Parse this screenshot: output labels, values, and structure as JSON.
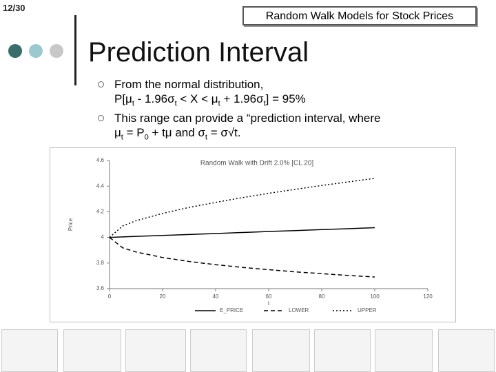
{
  "page_number": "12/30",
  "header": {
    "title": "Random Walk Models for Stock Prices"
  },
  "title": "Prediction Interval",
  "bullets": [
    {
      "runs": [
        "From the normal distribution,",
        "P[μ",
        "t",
        " - 1.96σ",
        "t",
        " < X < μ",
        "t",
        " + 1.96σ",
        "t",
        "] = 95%"
      ]
    },
    {
      "runs": [
        "This range can provide a “prediction interval, where",
        "μ",
        "t",
        " = P",
        "0",
        " + tμ and σ",
        "t",
        " = σ√t."
      ]
    }
  ],
  "chart_data": {
    "type": "line",
    "title": "Random Walk with Drift 2.0% [CL 20]",
    "x_label": "t",
    "y_label": "Price",
    "x": [
      0,
      5,
      10,
      20,
      30,
      40,
      50,
      60,
      70,
      80,
      90,
      100
    ],
    "series": [
      {
        "name": "E_PRICE",
        "color": "#000000",
        "dash": "solid",
        "values": [
          4,
          4.004,
          4.008,
          4.015,
          4.023,
          4.03,
          4.038,
          4.046,
          4.053,
          4.061,
          4.068,
          4.076
        ]
      },
      {
        "name": "LOWER",
        "color": "#000000",
        "dash": "dashed",
        "values": [
          4,
          3.918,
          3.886,
          3.843,
          3.812,
          3.787,
          3.766,
          3.748,
          3.731,
          3.717,
          3.703,
          3.691
        ]
      },
      {
        "name": "UPPER",
        "color": "#000000",
        "dash": "dotted",
        "values": [
          4,
          4.09,
          4.13,
          4.187,
          4.234,
          4.273,
          4.31,
          4.344,
          4.375,
          4.405,
          4.433,
          4.461
        ]
      }
    ],
    "xlim": [
      0,
      120
    ],
    "xticks": [
      0,
      20,
      40,
      60,
      80,
      100,
      120
    ],
    "ylim": [
      3.6,
      4.6
    ],
    "yticks": [
      3.6,
      3.8,
      4,
      4.2,
      4.4,
      4.6
    ],
    "legend": "bottom"
  }
}
